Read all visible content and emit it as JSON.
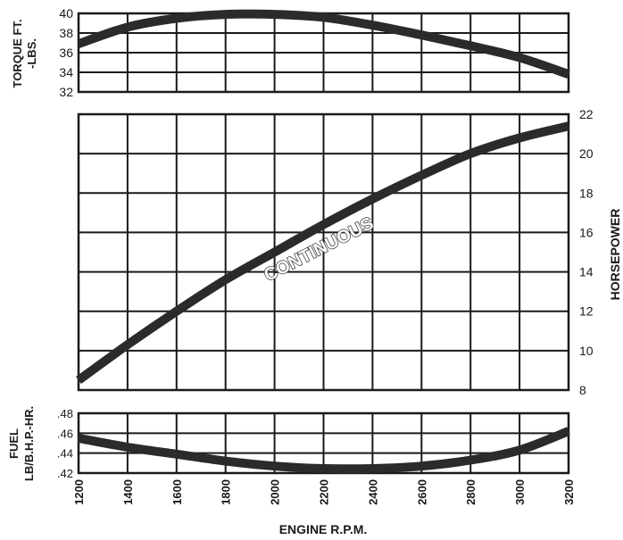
{
  "chart_data": [
    {
      "type": "line",
      "ylabel": "TORQUE FT. -LBS.",
      "ylabel_lines": [
        "TORQUE FT.",
        "-LBS."
      ],
      "ylim": [
        32,
        40
      ],
      "yticks": [
        "32",
        "34",
        "36",
        "38",
        "40"
      ],
      "grid": true,
      "series": [
        {
          "x": [
            1200,
            1400,
            1600,
            1800,
            2000,
            2200,
            2400,
            2600,
            2800,
            3000,
            3200
          ],
          "values": [
            36.9,
            38.6,
            39.5,
            39.9,
            39.9,
            39.6,
            38.8,
            37.8,
            36.7,
            35.5,
            33.8
          ]
        }
      ]
    },
    {
      "type": "line",
      "ylabel": "HORSEPOWER",
      "ylim": [
        8,
        22
      ],
      "yticks": [
        "8",
        "10",
        "12",
        "14",
        "16",
        "18",
        "20",
        "22"
      ],
      "annotation": "CONTINUOUS",
      "grid": true,
      "series": [
        {
          "x": [
            1200,
            1400,
            1600,
            1800,
            2000,
            2200,
            2400,
            2600,
            2800,
            3000,
            3200
          ],
          "values": [
            8.5,
            10.3,
            12.0,
            13.6,
            15.0,
            16.4,
            17.7,
            18.9,
            20.0,
            20.8,
            21.4
          ]
        }
      ]
    },
    {
      "type": "line",
      "ylabel": "FUEL LB/B.H.P.-HR.",
      "ylabel_lines": [
        "FUEL",
        "LB/B.H.P.-HR."
      ],
      "ylim": [
        0.42,
        0.48
      ],
      "yticks": [
        ".42",
        ".44",
        ".46",
        ".48"
      ],
      "xlabel": "ENGINE R.P.M.",
      "xticks": [
        "1200",
        "1400",
        "1600",
        "1800",
        "2000",
        "2200",
        "2400",
        "2600",
        "2800",
        "3000",
        "3200"
      ],
      "xlim": [
        1200,
        3200
      ],
      "grid": true,
      "series": [
        {
          "x": [
            1200,
            1400,
            1600,
            1800,
            2000,
            2200,
            2400,
            2600,
            2800,
            3000,
            3200
          ],
          "values": [
            0.455,
            0.446,
            0.439,
            0.432,
            0.427,
            0.4245,
            0.4245,
            0.427,
            0.433,
            0.443,
            0.462
          ]
        }
      ]
    }
  ]
}
